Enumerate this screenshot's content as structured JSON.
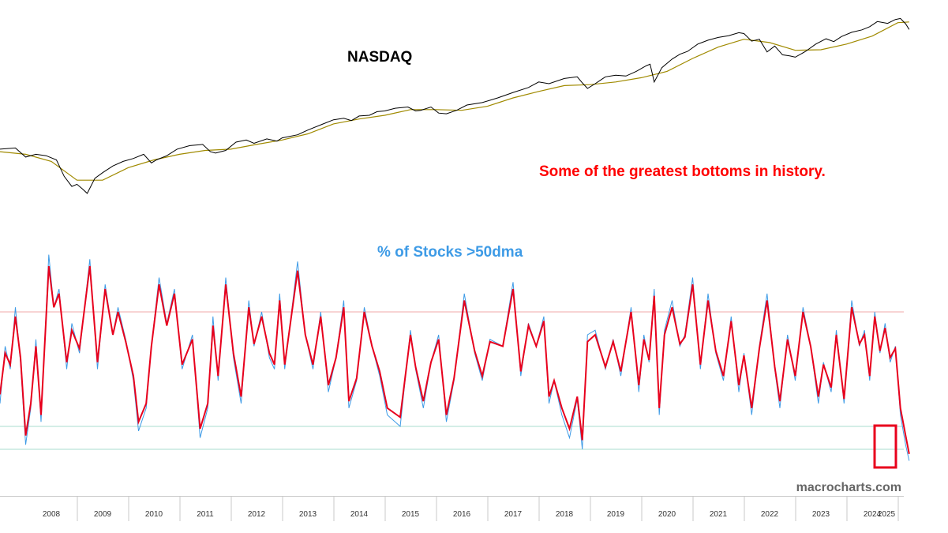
{
  "chart_data": [
    {
      "type": "line",
      "title": "NASDAQ",
      "annotation": "Some of the greatest bottoms in history.",
      "colors": {
        "price": "#000000",
        "moving_average": "#a08a00",
        "annotation": "#ff0000"
      },
      "series": [
        {
          "x": [
            2007.5,
            2007.8,
            2008.0,
            2008.2,
            2008.4,
            2008.6,
            2008.75,
            2008.9,
            2009.0,
            2009.1,
            2009.2,
            2009.35,
            2009.5,
            2009.7,
            2009.9,
            2010.1,
            2010.3,
            2010.45,
            2010.55,
            2010.75,
            2010.95,
            2011.2,
            2011.45,
            2011.6,
            2011.7,
            2011.9,
            2012.1,
            2012.3,
            2012.45,
            2012.7,
            2012.9,
            2013.0,
            2013.3,
            2013.5,
            2013.8,
            2014.0,
            2014.2,
            2014.35,
            2014.5,
            2014.7,
            2014.85,
            2015.0,
            2015.2,
            2015.45,
            2015.6,
            2015.7,
            2015.9,
            2016.05,
            2016.2,
            2016.4,
            2016.6,
            2016.9,
            2017.2,
            2017.5,
            2017.8,
            2018.0,
            2018.2,
            2018.5,
            2018.75,
            2018.85,
            2018.95,
            2019.1,
            2019.3,
            2019.5,
            2019.7,
            2019.9,
            2020.1,
            2020.17,
            2020.25,
            2020.4,
            2020.6,
            2020.75,
            2020.9,
            2021.1,
            2021.3,
            2021.5,
            2021.7,
            2021.9,
            2022.0,
            2022.15,
            2022.3,
            2022.45,
            2022.6,
            2022.75,
            2022.9,
            2023.0,
            2023.2,
            2023.4,
            2023.6,
            2023.75,
            2023.9,
            2024.1,
            2024.3,
            2024.45,
            2024.6,
            2024.8,
            2024.95,
            2025.05,
            2025.15,
            2025.22
          ],
          "values": [
            2650,
            2700,
            2350,
            2450,
            2400,
            2250,
            1750,
            1500,
            1550,
            1450,
            1350,
            1700,
            1850,
            2050,
            2200,
            2300,
            2450,
            2150,
            2250,
            2400,
            2650,
            2800,
            2850,
            2550,
            2500,
            2600,
            2950,
            3050,
            2900,
            3100,
            3000,
            3150,
            3300,
            3550,
            3900,
            4150,
            4250,
            4100,
            4400,
            4450,
            4700,
            4750,
            4950,
            5050,
            4750,
            4800,
            5050,
            4600,
            4550,
            4800,
            5200,
            5400,
            5800,
            6300,
            6800,
            7400,
            7200,
            7800,
            8000,
            7300,
            6700,
            7200,
            8000,
            8200,
            8100,
            8700,
            9500,
            9700,
            7400,
            9200,
            10500,
            11300,
            11800,
            13200,
            14000,
            14600,
            15000,
            15700,
            15500,
            13800,
            14200,
            11700,
            12800,
            11200,
            11000,
            10800,
            11800,
            13200,
            14300,
            13700,
            14800,
            15800,
            16400,
            17200,
            18600,
            18100,
            19200,
            19500,
            18000,
            16500
          ]
        },
        {
          "x": [
            2007.5,
            2008.0,
            2008.5,
            2009.0,
            2009.5,
            2010.0,
            2010.5,
            2011.0,
            2011.5,
            2012.0,
            2012.5,
            2013.0,
            2013.5,
            2014.0,
            2014.5,
            2015.0,
            2015.5,
            2016.0,
            2016.5,
            2017.0,
            2017.5,
            2018.0,
            2018.5,
            2019.0,
            2019.5,
            2020.0,
            2020.5,
            2021.0,
            2021.5,
            2022.0,
            2022.5,
            2023.0,
            2023.5,
            2024.0,
            2024.5,
            2025.0,
            2025.22
          ],
          "values": [
            2550,
            2450,
            2200,
            1650,
            1650,
            2000,
            2250,
            2450,
            2600,
            2650,
            2850,
            3050,
            3350,
            3900,
            4200,
            4450,
            4850,
            4850,
            4800,
            5100,
            5800,
            6400,
            7000,
            7100,
            7400,
            7900,
            8700,
            10600,
            12600,
            14200,
            13500,
            12000,
            12100,
            13200,
            14900,
            18300,
            18500
          ]
        }
      ]
    },
    {
      "type": "line",
      "title": "% of Stocks >50dma",
      "source_label": "macrocharts.com",
      "colors": {
        "daily": "#3e9be6",
        "smoothed": "#e8001c",
        "upper_band": "#f2a9a9",
        "lower_bands": "#a9ddcf",
        "highlight_box": "#e8001c",
        "title": "#3e9be6",
        "source": "#666666"
      },
      "x_tick_labels": [
        "2008",
        "2009",
        "2010",
        "2011",
        "2012",
        "2013",
        "2014",
        "2015",
        "2016",
        "2017",
        "2018",
        "2019",
        "2020",
        "2021",
        "2022",
        "2023",
        "2024",
        "2025"
      ],
      "reference_lines": [
        70,
        20,
        10
      ],
      "ylim": [
        0,
        100
      ],
      "series": [
        {
          "x": [
            2007.5,
            2007.6,
            2007.7,
            2007.8,
            2007.9,
            2008.0,
            2008.1,
            2008.2,
            2008.3,
            2008.45,
            2008.55,
            2008.65,
            2008.8,
            2008.9,
            2009.05,
            2009.25,
            2009.4,
            2009.55,
            2009.7,
            2009.8,
            2009.95,
            2010.1,
            2010.2,
            2010.35,
            2010.45,
            2010.6,
            2010.75,
            2010.9,
            2011.05,
            2011.25,
            2011.4,
            2011.55,
            2011.65,
            2011.75,
            2011.9,
            2012.05,
            2012.2,
            2012.35,
            2012.45,
            2012.6,
            2012.75,
            2012.85,
            2012.95,
            2013.05,
            2013.3,
            2013.45,
            2013.6,
            2013.75,
            2013.9,
            2014.05,
            2014.2,
            2014.3,
            2014.45,
            2014.6,
            2014.75,
            2014.9,
            2015.05,
            2015.3,
            2015.5,
            2015.6,
            2015.75,
            2015.9,
            2016.05,
            2016.2,
            2016.35,
            2016.55,
            2016.75,
            2016.9,
            2017.05,
            2017.3,
            2017.5,
            2017.65,
            2017.8,
            2017.95,
            2018.1,
            2018.2,
            2018.3,
            2018.45,
            2018.6,
            2018.75,
            2018.85,
            2018.95,
            2019.1,
            2019.3,
            2019.45,
            2019.6,
            2019.8,
            2019.95,
            2020.05,
            2020.15,
            2020.25,
            2020.35,
            2020.45,
            2020.6,
            2020.75,
            2020.85,
            2021.0,
            2021.15,
            2021.3,
            2021.45,
            2021.6,
            2021.75,
            2021.9,
            2022.0,
            2022.15,
            2022.3,
            2022.45,
            2022.6,
            2022.7,
            2022.85,
            2023.0,
            2023.15,
            2023.3,
            2023.45,
            2023.55,
            2023.7,
            2023.8,
            2023.95,
            2024.1,
            2024.25,
            2024.35,
            2024.45,
            2024.55,
            2024.65,
            2024.75,
            2024.85,
            2024.95,
            2025.05,
            2025.15,
            2025.22
          ],
          "values": [
            30,
            55,
            45,
            72,
            48,
            12,
            28,
            58,
            22,
            95,
            72,
            80,
            45,
            65,
            52,
            93,
            45,
            82,
            60,
            72,
            58,
            40,
            18,
            28,
            55,
            85,
            65,
            80,
            45,
            60,
            15,
            28,
            68,
            40,
            85,
            50,
            30,
            75,
            55,
            70,
            50,
            45,
            78,
            45,
            92,
            60,
            45,
            70,
            35,
            50,
            75,
            28,
            40,
            72,
            55,
            42,
            25,
            20,
            62,
            45,
            28,
            48,
            60,
            22,
            40,
            78,
            52,
            40,
            58,
            55,
            83,
            42,
            65,
            55,
            68,
            30,
            40,
            25,
            15,
            32,
            10,
            60,
            62,
            45,
            58,
            42,
            72,
            35,
            60,
            48,
            80,
            25,
            62,
            75,
            55,
            60,
            85,
            45,
            78,
            52,
            40,
            68,
            35,
            52,
            25,
            55,
            78,
            45,
            28,
            60,
            40,
            72,
            55,
            30,
            48,
            35,
            62,
            30,
            75,
            55,
            62,
            40,
            70,
            52,
            65,
            48,
            55,
            25,
            12,
            5
          ]
        },
        {
          "x": [
            2007.5,
            2007.6,
            2007.7,
            2007.8,
            2007.9,
            2008.0,
            2008.1,
            2008.2,
            2008.3,
            2008.45,
            2008.55,
            2008.65,
            2008.8,
            2008.9,
            2009.05,
            2009.25,
            2009.4,
            2009.55,
            2009.7,
            2009.8,
            2009.95,
            2010.1,
            2010.2,
            2010.35,
            2010.45,
            2010.6,
            2010.75,
            2010.9,
            2011.05,
            2011.25,
            2011.4,
            2011.55,
            2011.65,
            2011.75,
            2011.9,
            2012.05,
            2012.2,
            2012.35,
            2012.45,
            2012.6,
            2012.75,
            2012.85,
            2012.95,
            2013.05,
            2013.3,
            2013.45,
            2013.6,
            2013.75,
            2013.9,
            2014.05,
            2014.2,
            2014.3,
            2014.45,
            2014.6,
            2014.75,
            2014.9,
            2015.05,
            2015.3,
            2015.5,
            2015.6,
            2015.75,
            2015.9,
            2016.05,
            2016.2,
            2016.35,
            2016.55,
            2016.75,
            2016.9,
            2017.05,
            2017.3,
            2017.5,
            2017.65,
            2017.8,
            2017.95,
            2018.1,
            2018.2,
            2018.3,
            2018.45,
            2018.6,
            2018.75,
            2018.85,
            2018.95,
            2019.1,
            2019.3,
            2019.45,
            2019.6,
            2019.8,
            2019.95,
            2020.05,
            2020.15,
            2020.25,
            2020.35,
            2020.45,
            2020.6,
            2020.75,
            2020.85,
            2021.0,
            2021.15,
            2021.3,
            2021.45,
            2021.6,
            2021.75,
            2021.9,
            2022.0,
            2022.15,
            2022.3,
            2022.45,
            2022.6,
            2022.7,
            2022.85,
            2023.0,
            2023.15,
            2023.3,
            2023.45,
            2023.55,
            2023.7,
            2023.8,
            2023.95,
            2024.1,
            2024.25,
            2024.35,
            2024.45,
            2024.55,
            2024.65,
            2024.75,
            2024.85,
            2024.95,
            2025.05,
            2025.15,
            2025.22
          ],
          "values": [
            34,
            52,
            47,
            68,
            50,
            16,
            30,
            55,
            25,
            90,
            72,
            78,
            48,
            62,
            54,
            90,
            48,
            80,
            60,
            70,
            57,
            42,
            22,
            30,
            55,
            82,
            64,
            78,
            47,
            58,
            19,
            30,
            64,
            42,
            82,
            52,
            33,
            72,
            56,
            68,
            52,
            47,
            75,
            47,
            88,
            60,
            47,
            68,
            38,
            50,
            72,
            31,
            41,
            70,
            55,
            44,
            28,
            24,
            60,
            46,
            31,
            48,
            58,
            25,
            41,
            75,
            53,
            42,
            57,
            55,
            80,
            44,
            64,
            55,
            66,
            33,
            40,
            28,
            19,
            33,
            14,
            57,
            60,
            46,
            57,
            44,
            70,
            38,
            58,
            49,
            77,
            28,
            60,
            72,
            56,
            59,
            82,
            47,
            75,
            53,
            42,
            66,
            38,
            51,
            28,
            54,
            75,
            46,
            31,
            58,
            42,
            70,
            55,
            33,
            47,
            37,
            60,
            32,
            72,
            56,
            60,
            42,
            68,
            53,
            63,
            50,
            54,
            28,
            16,
            8
          ]
        }
      ]
    }
  ]
}
